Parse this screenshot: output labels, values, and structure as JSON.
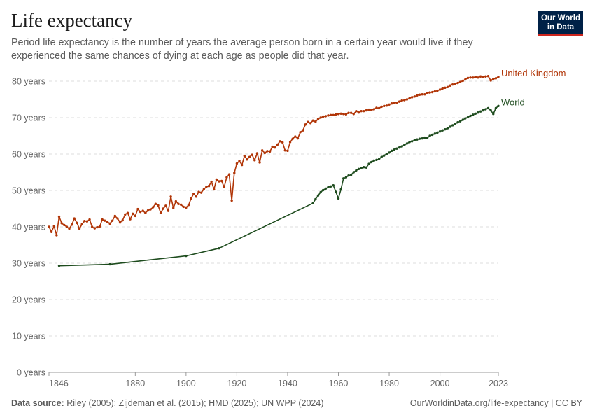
{
  "header": {
    "title": "Life expectancy",
    "subtitle": "Period life expectancy is the number of years the average person born in a certain year would live if they experienced the same chances of dying at each age as people did that year."
  },
  "logo": {
    "line1": "Our World",
    "line2": "in Data",
    "bg_color": "#002147",
    "accent_color": "#ce261e"
  },
  "footer": {
    "source_label": "Data source:",
    "source_text": "Riley (2005); Zijdeman et al. (2015); HMD (2025); UN WPP (2024)",
    "link_text": "OurWorldinData.org/life-expectancy | CC BY"
  },
  "chart_data": {
    "type": "line",
    "ylim": [
      0,
      80
    ],
    "xlim": [
      1846,
      2023
    ],
    "y_ticks": [
      0,
      10,
      20,
      30,
      40,
      50,
      60,
      70,
      80
    ],
    "y_tick_labels": [
      "0 years",
      "10 years",
      "20 years",
      "30 years",
      "40 years",
      "50 years",
      "60 years",
      "70 years",
      "80 years"
    ],
    "x_ticks": [
      1846,
      1880,
      1900,
      1920,
      1940,
      1960,
      1980,
      2000,
      2023
    ],
    "x_tick_labels": [
      "1846",
      "1880",
      "1900",
      "1920",
      "1940",
      "1960",
      "1980",
      "2000",
      "2023"
    ],
    "grid": "horizontal-dashed",
    "series": [
      {
        "name": "United Kingdom",
        "color": "#b13507",
        "x": [
          1846,
          1847,
          1848,
          1849,
          1850,
          1851,
          1852,
          1853,
          1854,
          1855,
          1856,
          1857,
          1858,
          1859,
          1860,
          1861,
          1862,
          1863,
          1864,
          1865,
          1866,
          1867,
          1868,
          1869,
          1870,
          1871,
          1872,
          1873,
          1874,
          1875,
          1876,
          1877,
          1878,
          1879,
          1880,
          1881,
          1882,
          1883,
          1884,
          1885,
          1886,
          1887,
          1888,
          1889,
          1890,
          1891,
          1892,
          1893,
          1894,
          1895,
          1896,
          1897,
          1898,
          1899,
          1900,
          1901,
          1902,
          1903,
          1904,
          1905,
          1906,
          1907,
          1908,
          1909,
          1910,
          1911,
          1912,
          1913,
          1914,
          1915,
          1916,
          1917,
          1918,
          1919,
          1920,
          1921,
          1922,
          1923,
          1924,
          1925,
          1926,
          1927,
          1928,
          1929,
          1930,
          1931,
          1932,
          1933,
          1934,
          1935,
          1936,
          1937,
          1938,
          1939,
          1940,
          1941,
          1942,
          1943,
          1944,
          1945,
          1946,
          1947,
          1948,
          1949,
          1950,
          1951,
          1952,
          1953,
          1954,
          1955,
          1956,
          1957,
          1958,
          1959,
          1960,
          1961,
          1962,
          1963,
          1964,
          1965,
          1966,
          1967,
          1968,
          1969,
          1970,
          1971,
          1972,
          1973,
          1974,
          1975,
          1976,
          1977,
          1978,
          1979,
          1980,
          1981,
          1982,
          1983,
          1984,
          1985,
          1986,
          1987,
          1988,
          1989,
          1990,
          1991,
          1992,
          1993,
          1994,
          1995,
          1996,
          1997,
          1998,
          1999,
          2000,
          2001,
          2002,
          2003,
          2004,
          2005,
          2006,
          2007,
          2008,
          2009,
          2010,
          2011,
          2012,
          2013,
          2014,
          2015,
          2016,
          2017,
          2018,
          2019,
          2020,
          2021,
          2022,
          2023
        ],
        "values": [
          40.0,
          38.6,
          40.2,
          37.7,
          42.8,
          41.0,
          40.5,
          40.0,
          39.5,
          40.6,
          42.3,
          41.1,
          39.5,
          40.7,
          41.6,
          41.5,
          42.0,
          40.0,
          39.6,
          39.9,
          40.1,
          42.0,
          41.7,
          41.4,
          40.9,
          41.7,
          43.0,
          42.3,
          41.2,
          41.8,
          43.4,
          43.8,
          42.1,
          43.6,
          43.0,
          44.9,
          44.1,
          44.4,
          43.8,
          44.5,
          44.8,
          45.4,
          46.3,
          45.9,
          43.8,
          45.0,
          45.8,
          44.4,
          48.3,
          45.2,
          47.0,
          46.3,
          46.1,
          45.5,
          45.3,
          46.0,
          47.8,
          49.1,
          48.3,
          49.6,
          49.4,
          50.3,
          51.0,
          51.2,
          52.4,
          50.3,
          53.0,
          52.5,
          52.6,
          50.9,
          53.6,
          54.4,
          47.2,
          54.8,
          57.4,
          58.1,
          57.0,
          59.5,
          58.5,
          59.2,
          59.8,
          58.3,
          60.2,
          57.7,
          61.0,
          60.3,
          60.8,
          60.7,
          62.0,
          61.8,
          62.6,
          63.5,
          63.2,
          61.0,
          60.9,
          63.3,
          64.2,
          64.8,
          64.3,
          66.0,
          66.5,
          68.1,
          68.8,
          68.5,
          69.2,
          68.9,
          69.6,
          70.0,
          70.3,
          70.4,
          70.6,
          70.7,
          70.7,
          70.9,
          71.0,
          71.1,
          71.0,
          70.9,
          71.3,
          71.3,
          71.0,
          71.8,
          71.4,
          71.8,
          71.8,
          72.0,
          72.2,
          72.1,
          72.3,
          72.7,
          72.6,
          73.0,
          73.2,
          73.3,
          73.6,
          73.9,
          74.1,
          74.1,
          74.4,
          74.7,
          74.8,
          75.0,
          75.3,
          75.6,
          75.8,
          76.1,
          76.3,
          76.4,
          76.4,
          76.7,
          76.9,
          77.0,
          77.2,
          77.4,
          77.7,
          78.0,
          78.2,
          78.4,
          78.8,
          79.1,
          79.3,
          79.5,
          79.8,
          80.1,
          80.5,
          80.9,
          81.0,
          81.0,
          81.2,
          81.0,
          81.3,
          81.2,
          81.3,
          81.4,
          80.2,
          80.6,
          80.8,
          81.2
        ]
      },
      {
        "name": "World",
        "color": "#1e4c1e",
        "x": [
          1850,
          1870,
          1900,
          1913,
          1950,
          1951,
          1952,
          1953,
          1954,
          1955,
          1956,
          1957,
          1958,
          1959,
          1960,
          1961,
          1962,
          1963,
          1964,
          1965,
          1966,
          1967,
          1968,
          1969,
          1970,
          1971,
          1972,
          1973,
          1974,
          1975,
          1976,
          1977,
          1978,
          1979,
          1980,
          1981,
          1982,
          1983,
          1984,
          1985,
          1986,
          1987,
          1988,
          1989,
          1990,
          1991,
          1992,
          1993,
          1994,
          1995,
          1996,
          1997,
          1998,
          1999,
          2000,
          2001,
          2002,
          2003,
          2004,
          2005,
          2006,
          2007,
          2008,
          2009,
          2010,
          2011,
          2012,
          2013,
          2014,
          2015,
          2016,
          2017,
          2018,
          2019,
          2020,
          2021,
          2022,
          2023
        ],
        "values": [
          29.3,
          29.7,
          32.0,
          34.1,
          46.5,
          47.6,
          48.6,
          49.5,
          50.1,
          50.5,
          50.9,
          51.1,
          51.4,
          49.6,
          47.8,
          50.3,
          53.3,
          53.6,
          54.1,
          54.3,
          55.0,
          55.5,
          55.9,
          56.1,
          56.4,
          56.3,
          57.3,
          57.8,
          58.2,
          58.4,
          58.6,
          59.2,
          59.6,
          60.0,
          60.4,
          60.9,
          61.2,
          61.5,
          61.8,
          62.1,
          62.5,
          62.9,
          63.3,
          63.5,
          63.8,
          64.0,
          64.2,
          64.3,
          64.5,
          64.4,
          65.0,
          65.3,
          65.6,
          65.9,
          66.2,
          66.5,
          66.8,
          67.1,
          67.5,
          67.9,
          68.3,
          68.7,
          69.0,
          69.4,
          69.8,
          70.1,
          70.5,
          70.8,
          71.1,
          71.4,
          71.7,
          72.0,
          72.3,
          72.6,
          72.0,
          71.0,
          72.6,
          73.2
        ]
      }
    ]
  }
}
